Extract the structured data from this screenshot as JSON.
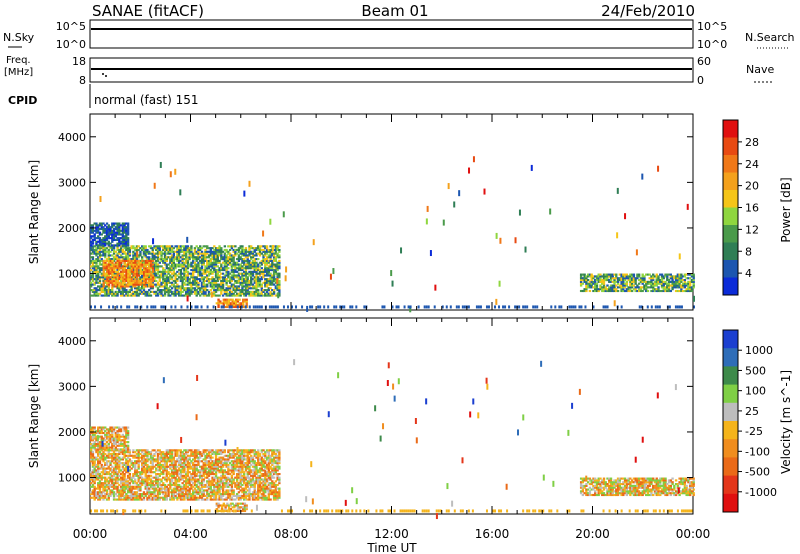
{
  "header": {
    "title": "SANAE (fitACF)",
    "beam": "Beam 01",
    "date": "24/Feb/2010"
  },
  "strips": {
    "nsky_label": "N.Sky",
    "nsky_ticks": [
      "10^5",
      "10^0"
    ],
    "nsearch_label": "N.Search",
    "nsearch_ticks": [
      "10^5",
      "10^0"
    ],
    "freq_label_1": "Freq.",
    "freq_label_2": "[MHz]",
    "freq_ticks": [
      "18",
      "8"
    ],
    "nave_label": "Nave",
    "nave_ticks": [
      "60",
      "0"
    ],
    "cpid_label": "CPID",
    "cpid_value": "normal (fast) 151"
  },
  "x_axis": {
    "ticks": [
      "00:00",
      "04:00",
      "08:00",
      "12:00",
      "16:00",
      "20:00",
      "00:00"
    ],
    "label": "Time UT"
  },
  "colors": {
    "power_scale": [
      "#0b2bd8",
      "#1c56b0",
      "#2f7e55",
      "#4a9a4a",
      "#8fd63f",
      "#f5c518",
      "#f4a11c",
      "#f07818",
      "#e84a12",
      "#e00f0f"
    ],
    "velocity_scale": [
      "#1b3fd0",
      "#2e6db8",
      "#3d8a4a",
      "#7fcf45",
      "#bdbdbd",
      "#f5b41a",
      "#f08d1e",
      "#ea6a18",
      "#e4361a",
      "#e00f0f"
    ]
  },
  "chart_data": [
    {
      "type": "heatmap",
      "panel": "power",
      "ylabel": "Slant Range [km]",
      "xlabel": "Time UT",
      "ylim": [
        200,
        4500
      ],
      "y_ticks": [
        "4000",
        "3000",
        "2000",
        "1000"
      ],
      "x_ticks": [
        "00:00",
        "04:00",
        "08:00",
        "12:00",
        "16:00",
        "20:00",
        "00:00"
      ],
      "colorbar_label": "Power [dB]",
      "colorbar_ticks": [
        "28",
        "24",
        "20",
        "16",
        "12",
        "8",
        "4"
      ],
      "regions": [
        {
          "t_start": 0.0,
          "t_end": 7.5,
          "r_min": 500,
          "r_max": 1600,
          "level": "mid"
        },
        {
          "t_start": 0.5,
          "t_end": 2.5,
          "r_min": 700,
          "r_max": 1300,
          "level": "high"
        },
        {
          "t_start": 0.0,
          "t_end": 1.5,
          "r_min": 1600,
          "r_max": 2100,
          "level": "low"
        },
        {
          "t_start": 5.0,
          "t_end": 6.2,
          "r_min": 250,
          "r_max": 450,
          "level": "high"
        },
        {
          "t_start": 19.5,
          "t_end": 24.0,
          "r_min": 600,
          "r_max": 1000,
          "level": "mid"
        }
      ]
    },
    {
      "type": "heatmap",
      "panel": "velocity",
      "ylabel": "Slant Range [km]",
      "xlabel": "Time UT",
      "ylim": [
        200,
        4500
      ],
      "y_ticks": [
        "4000",
        "3000",
        "2000",
        "1000"
      ],
      "x_ticks": [
        "00:00",
        "04:00",
        "08:00",
        "12:00",
        "16:00",
        "20:00",
        "00:00"
      ],
      "colorbar_label": "Velocity [m s^-1]",
      "colorbar_ticks": [
        "1000",
        "500",
        "100",
        "25",
        "-25",
        "-100",
        "-500",
        "-1000"
      ],
      "regions": [
        {
          "t_start": 0.0,
          "t_end": 7.5,
          "r_min": 500,
          "r_max": 1600,
          "level": "negative"
        },
        {
          "t_start": 0.0,
          "t_end": 1.5,
          "r_min": 1600,
          "r_max": 2100,
          "level": "negative"
        },
        {
          "t_start": 5.0,
          "t_end": 6.2,
          "r_min": 250,
          "r_max": 450,
          "level": "negative"
        },
        {
          "t_start": 19.5,
          "t_end": 24.0,
          "r_min": 600,
          "r_max": 1000,
          "level": "negative"
        }
      ]
    }
  ]
}
